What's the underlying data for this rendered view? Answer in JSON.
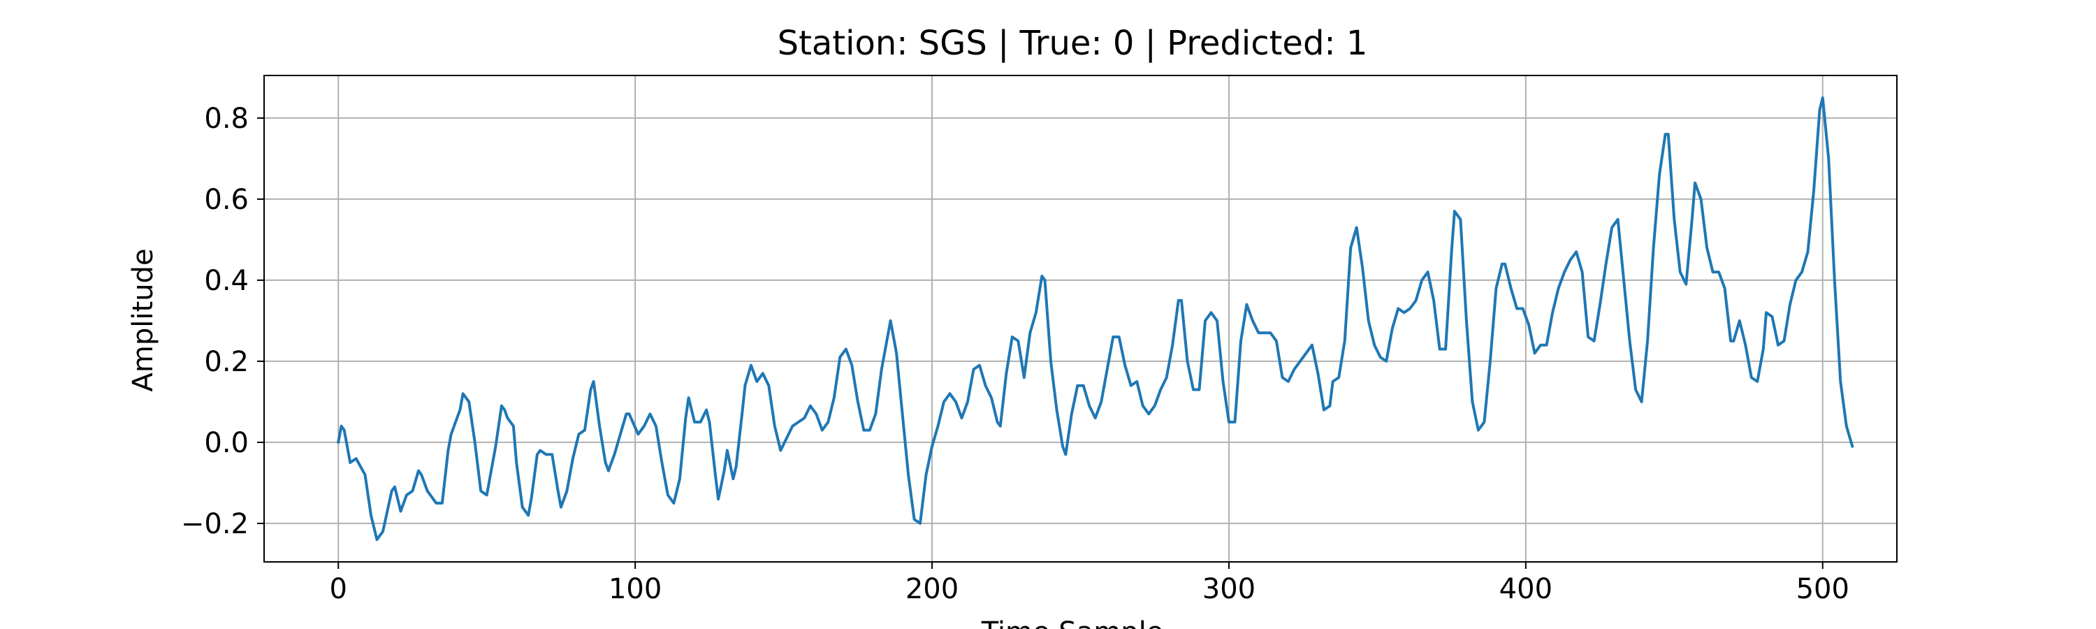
{
  "chart_data": {
    "type": "line",
    "title": "Station: SGS | True: 0 | Predicted: 1",
    "xlabel": "Time Sample",
    "ylabel": "Amplitude",
    "xlim": [
      -25,
      525
    ],
    "ylim": [
      -0.295,
      0.905
    ],
    "xticks": [
      0,
      100,
      200,
      300,
      400,
      500
    ],
    "xtick_labels": [
      "0",
      "100",
      "200",
      "300",
      "400",
      "500"
    ],
    "yticks": [
      -0.2,
      0.0,
      0.2,
      0.4,
      0.6,
      0.8
    ],
    "ytick_labels": [
      "−0.2",
      "0.0",
      "0.2",
      "0.4",
      "0.6",
      "0.8"
    ],
    "grid": true,
    "legend": false,
    "series": [
      {
        "color": "#1f77b4",
        "points": [
          [
            0,
            0.0
          ],
          [
            1,
            0.04
          ],
          [
            2,
            0.03
          ],
          [
            4,
            -0.05
          ],
          [
            6,
            -0.04
          ],
          [
            9,
            -0.08
          ],
          [
            11,
            -0.18
          ],
          [
            13,
            -0.24
          ],
          [
            15,
            -0.22
          ],
          [
            18,
            -0.12
          ],
          [
            19,
            -0.11
          ],
          [
            21,
            -0.17
          ],
          [
            23,
            -0.13
          ],
          [
            25,
            -0.12
          ],
          [
            27,
            -0.07
          ],
          [
            28,
            -0.08
          ],
          [
            30,
            -0.12
          ],
          [
            33,
            -0.15
          ],
          [
            35,
            -0.15
          ],
          [
            37,
            -0.02
          ],
          [
            38,
            0.02
          ],
          [
            41,
            0.08
          ],
          [
            42,
            0.12
          ],
          [
            44,
            0.1
          ],
          [
            46,
            0.0
          ],
          [
            48,
            -0.12
          ],
          [
            50,
            -0.13
          ],
          [
            53,
            -0.01
          ],
          [
            55,
            0.09
          ],
          [
            56,
            0.08
          ],
          [
            57,
            0.06
          ],
          [
            59,
            0.04
          ],
          [
            60,
            -0.05
          ],
          [
            62,
            -0.16
          ],
          [
            64,
            -0.18
          ],
          [
            65,
            -0.14
          ],
          [
            67,
            -0.03
          ],
          [
            68,
            -0.02
          ],
          [
            70,
            -0.03
          ],
          [
            72,
            -0.03
          ],
          [
            74,
            -0.12
          ],
          [
            75,
            -0.16
          ],
          [
            77,
            -0.12
          ],
          [
            79,
            -0.04
          ],
          [
            81,
            0.02
          ],
          [
            83,
            0.03
          ],
          [
            85,
            0.13
          ],
          [
            86,
            0.15
          ],
          [
            88,
            0.04
          ],
          [
            90,
            -0.05
          ],
          [
            91,
            -0.07
          ],
          [
            93,
            -0.03
          ],
          [
            95,
            0.02
          ],
          [
            97,
            0.07
          ],
          [
            98,
            0.07
          ],
          [
            101,
            0.02
          ],
          [
            103,
            0.04
          ],
          [
            105,
            0.07
          ],
          [
            107,
            0.04
          ],
          [
            109,
            -0.05
          ],
          [
            111,
            -0.13
          ],
          [
            113,
            -0.15
          ],
          [
            115,
            -0.09
          ],
          [
            117,
            0.06
          ],
          [
            118,
            0.11
          ],
          [
            120,
            0.05
          ],
          [
            122,
            0.05
          ],
          [
            124,
            0.08
          ],
          [
            125,
            0.05
          ],
          [
            127,
            -0.08
          ],
          [
            128,
            -0.14
          ],
          [
            130,
            -0.07
          ],
          [
            131,
            -0.02
          ],
          [
            133,
            -0.09
          ],
          [
            134,
            -0.06
          ],
          [
            136,
            0.07
          ],
          [
            137,
            0.14
          ],
          [
            139,
            0.19
          ],
          [
            141,
            0.15
          ],
          [
            143,
            0.17
          ],
          [
            145,
            0.14
          ],
          [
            147,
            0.04
          ],
          [
            149,
            -0.02
          ],
          [
            151,
            0.01
          ],
          [
            153,
            0.04
          ],
          [
            155,
            0.05
          ],
          [
            157,
            0.06
          ],
          [
            159,
            0.09
          ],
          [
            161,
            0.07
          ],
          [
            163,
            0.03
          ],
          [
            165,
            0.05
          ],
          [
            167,
            0.11
          ],
          [
            169,
            0.21
          ],
          [
            171,
            0.23
          ],
          [
            173,
            0.19
          ],
          [
            175,
            0.1
          ],
          [
            177,
            0.03
          ],
          [
            179,
            0.03
          ],
          [
            181,
            0.07
          ],
          [
            183,
            0.18
          ],
          [
            185,
            0.26
          ],
          [
            186,
            0.3
          ],
          [
            188,
            0.22
          ],
          [
            190,
            0.07
          ],
          [
            192,
            -0.08
          ],
          [
            194,
            -0.19
          ],
          [
            196,
            -0.2
          ],
          [
            198,
            -0.08
          ],
          [
            200,
            -0.01
          ],
          [
            202,
            0.04
          ],
          [
            204,
            0.1
          ],
          [
            206,
            0.12
          ],
          [
            208,
            0.1
          ],
          [
            210,
            0.06
          ],
          [
            212,
            0.1
          ],
          [
            214,
            0.18
          ],
          [
            216,
            0.19
          ],
          [
            218,
            0.14
          ],
          [
            220,
            0.11
          ],
          [
            222,
            0.05
          ],
          [
            223,
            0.04
          ],
          [
            225,
            0.17
          ],
          [
            227,
            0.26
          ],
          [
            229,
            0.25
          ],
          [
            231,
            0.16
          ],
          [
            233,
            0.27
          ],
          [
            235,
            0.32
          ],
          [
            237,
            0.41
          ],
          [
            238,
            0.4
          ],
          [
            240,
            0.2
          ],
          [
            242,
            0.08
          ],
          [
            244,
            -0.01
          ],
          [
            245,
            -0.03
          ],
          [
            247,
            0.07
          ],
          [
            249,
            0.14
          ],
          [
            251,
            0.14
          ],
          [
            253,
            0.09
          ],
          [
            255,
            0.06
          ],
          [
            257,
            0.1
          ],
          [
            259,
            0.18
          ],
          [
            261,
            0.26
          ],
          [
            263,
            0.26
          ],
          [
            265,
            0.19
          ],
          [
            267,
            0.14
          ],
          [
            269,
            0.15
          ],
          [
            271,
            0.09
          ],
          [
            273,
            0.07
          ],
          [
            275,
            0.09
          ],
          [
            277,
            0.13
          ],
          [
            279,
            0.16
          ],
          [
            281,
            0.24
          ],
          [
            283,
            0.35
          ],
          [
            284,
            0.35
          ],
          [
            286,
            0.2
          ],
          [
            288,
            0.13
          ],
          [
            290,
            0.13
          ],
          [
            292,
            0.3
          ],
          [
            294,
            0.32
          ],
          [
            296,
            0.3
          ],
          [
            298,
            0.15
          ],
          [
            300,
            0.05
          ],
          [
            302,
            0.05
          ],
          [
            304,
            0.25
          ],
          [
            306,
            0.34
          ],
          [
            308,
            0.3
          ],
          [
            310,
            0.27
          ],
          [
            312,
            0.27
          ],
          [
            314,
            0.27
          ],
          [
            316,
            0.25
          ],
          [
            318,
            0.16
          ],
          [
            320,
            0.15
          ],
          [
            322,
            0.18
          ],
          [
            324,
            0.2
          ],
          [
            326,
            0.22
          ],
          [
            328,
            0.24
          ],
          [
            330,
            0.17
          ],
          [
            332,
            0.08
          ],
          [
            334,
            0.09
          ],
          [
            335,
            0.15
          ],
          [
            337,
            0.16
          ],
          [
            339,
            0.25
          ],
          [
            341,
            0.48
          ],
          [
            343,
            0.53
          ],
          [
            345,
            0.43
          ],
          [
            347,
            0.3
          ],
          [
            349,
            0.24
          ],
          [
            351,
            0.21
          ],
          [
            353,
            0.2
          ],
          [
            355,
            0.28
          ],
          [
            357,
            0.33
          ],
          [
            359,
            0.32
          ],
          [
            361,
            0.33
          ],
          [
            363,
            0.35
          ],
          [
            365,
            0.4
          ],
          [
            367,
            0.42
          ],
          [
            369,
            0.35
          ],
          [
            371,
            0.23
          ],
          [
            373,
            0.23
          ],
          [
            375,
            0.47
          ],
          [
            376,
            0.57
          ],
          [
            378,
            0.55
          ],
          [
            380,
            0.3
          ],
          [
            382,
            0.1
          ],
          [
            384,
            0.03
          ],
          [
            386,
            0.05
          ],
          [
            388,
            0.2
          ],
          [
            390,
            0.38
          ],
          [
            392,
            0.44
          ],
          [
            393,
            0.44
          ],
          [
            395,
            0.38
          ],
          [
            397,
            0.33
          ],
          [
            399,
            0.33
          ],
          [
            401,
            0.29
          ],
          [
            403,
            0.22
          ],
          [
            405,
            0.24
          ],
          [
            407,
            0.24
          ],
          [
            409,
            0.32
          ],
          [
            411,
            0.38
          ],
          [
            413,
            0.42
          ],
          [
            415,
            0.45
          ],
          [
            417,
            0.47
          ],
          [
            419,
            0.42
          ],
          [
            421,
            0.26
          ],
          [
            423,
            0.25
          ],
          [
            425,
            0.34
          ],
          [
            427,
            0.44
          ],
          [
            429,
            0.53
          ],
          [
            431,
            0.55
          ],
          [
            433,
            0.4
          ],
          [
            435,
            0.25
          ],
          [
            437,
            0.13
          ],
          [
            439,
            0.1
          ],
          [
            441,
            0.25
          ],
          [
            443,
            0.48
          ],
          [
            445,
            0.66
          ],
          [
            447,
            0.76
          ],
          [
            448,
            0.76
          ],
          [
            450,
            0.55
          ],
          [
            452,
            0.42
          ],
          [
            454,
            0.39
          ],
          [
            456,
            0.55
          ],
          [
            457,
            0.64
          ],
          [
            459,
            0.6
          ],
          [
            461,
            0.48
          ],
          [
            463,
            0.42
          ],
          [
            465,
            0.42
          ],
          [
            467,
            0.38
          ],
          [
            469,
            0.25
          ],
          [
            470,
            0.25
          ],
          [
            472,
            0.3
          ],
          [
            474,
            0.24
          ],
          [
            476,
            0.16
          ],
          [
            478,
            0.15
          ],
          [
            480,
            0.23
          ],
          [
            481,
            0.32
          ],
          [
            483,
            0.31
          ],
          [
            485,
            0.24
          ],
          [
            487,
            0.25
          ],
          [
            489,
            0.34
          ],
          [
            491,
            0.4
          ],
          [
            493,
            0.42
          ],
          [
            495,
            0.47
          ],
          [
            497,
            0.62
          ],
          [
            499,
            0.82
          ],
          [
            500,
            0.85
          ],
          [
            502,
            0.7
          ],
          [
            504,
            0.4
          ],
          [
            506,
            0.15
          ],
          [
            508,
            0.04
          ],
          [
            510,
            -0.01
          ]
        ]
      }
    ]
  }
}
